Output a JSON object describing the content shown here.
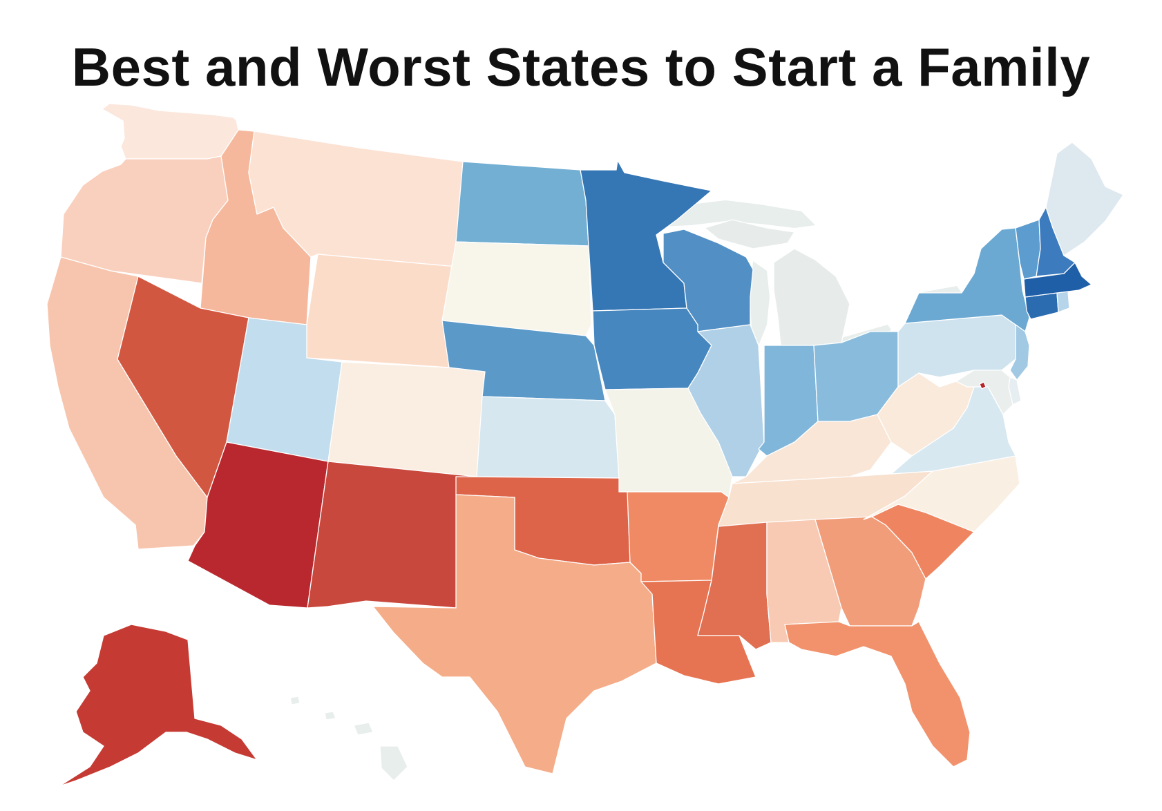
{
  "title": "Best and Worst States to Start a Family",
  "colors": {
    "background": "#ffffff",
    "lake": "#e8eeec",
    "best": "#1f5fa8",
    "worst": "#b4252b"
  },
  "states": [
    {
      "id": "WA",
      "fill": "#fbe7dc"
    },
    {
      "id": "OR",
      "fill": "#f9d0bd"
    },
    {
      "id": "CA",
      "fill": "#f7c5ad"
    },
    {
      "id": "ID",
      "fill": "#f6b89c"
    },
    {
      "id": "NV",
      "fill": "#d25741"
    },
    {
      "id": "MT",
      "fill": "#fce2d3"
    },
    {
      "id": "WY",
      "fill": "#fbdcc9"
    },
    {
      "id": "UT",
      "fill": "#c2dded"
    },
    {
      "id": "AZ",
      "fill": "#b9282f"
    },
    {
      "id": "CO",
      "fill": "#faeee2"
    },
    {
      "id": "NM",
      "fill": "#c9483d"
    },
    {
      "id": "ND",
      "fill": "#72afd3"
    },
    {
      "id": "SD",
      "fill": "#f8f5ea"
    },
    {
      "id": "NE",
      "fill": "#5a99c8"
    },
    {
      "id": "KS",
      "fill": "#d6e7f0"
    },
    {
      "id": "OK",
      "fill": "#dd6448"
    },
    {
      "id": "TX",
      "fill": "#f5ac88"
    },
    {
      "id": "MN",
      "fill": "#3576b5"
    },
    {
      "id": "IA",
      "fill": "#4787c0"
    },
    {
      "id": "MO",
      "fill": "#f3f3ea"
    },
    {
      "id": "AR",
      "fill": "#ef8a64"
    },
    {
      "id": "LA",
      "fill": "#e67452"
    },
    {
      "id": "WI",
      "fill": "#518fc4"
    },
    {
      "id": "IL",
      "fill": "#afd0e6"
    },
    {
      "id": "MS",
      "fill": "#e16f51"
    },
    {
      "id": "MI",
      "fill": "#e7ecea"
    },
    {
      "id": "IN",
      "fill": "#7fb6da"
    },
    {
      "id": "KY",
      "fill": "#f9e6d7"
    },
    {
      "id": "TN",
      "fill": "#f9e1d0"
    },
    {
      "id": "AL",
      "fill": "#f8cab3"
    },
    {
      "id": "OH",
      "fill": "#88bbdc"
    },
    {
      "id": "GA",
      "fill": "#f19d7a"
    },
    {
      "id": "FL",
      "fill": "#f1926c"
    },
    {
      "id": "SC",
      "fill": "#ee8560"
    },
    {
      "id": "NC",
      "fill": "#faefe3"
    },
    {
      "id": "VA",
      "fill": "#d7e8f1"
    },
    {
      "id": "WV",
      "fill": "#faeadb"
    },
    {
      "id": "PA",
      "fill": "#cfe3ef"
    },
    {
      "id": "NY",
      "fill": "#6ba9d3"
    },
    {
      "id": "NJ",
      "fill": "#a1c9e4"
    },
    {
      "id": "DE",
      "fill": "#e6eef1"
    },
    {
      "id": "MD",
      "fill": "#eaeeec"
    },
    {
      "id": "DC",
      "fill": "#b4252b"
    },
    {
      "id": "CT",
      "fill": "#2b6cb0"
    },
    {
      "id": "RI",
      "fill": "#b6d5ea"
    },
    {
      "id": "MA",
      "fill": "#1f5fa8"
    },
    {
      "id": "VT",
      "fill": "#5c9cce"
    },
    {
      "id": "NH",
      "fill": "#3c7bbd"
    },
    {
      "id": "ME",
      "fill": "#dde9ef"
    },
    {
      "id": "AK",
      "fill": "#c53b33"
    },
    {
      "id": "HI",
      "fill": "#e8eeec"
    }
  ]
}
